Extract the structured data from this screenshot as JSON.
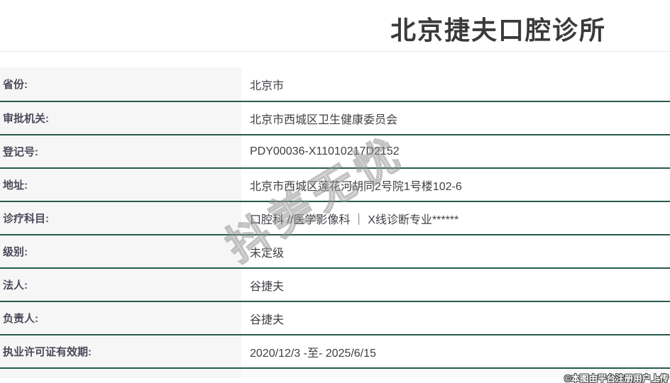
{
  "header": {
    "title": "北京捷夫口腔诊所"
  },
  "table": {
    "rows": [
      {
        "label": "省份:",
        "value": "北京市"
      },
      {
        "label": "审批机关:",
        "value": "北京市西城区卫生健康委员会"
      },
      {
        "label": "登记号:",
        "value": "PDY00036-X11010217D2152"
      },
      {
        "label": "地址:",
        "value": "北京市西城区莲花河胡同2号院1号楼102-6"
      },
      {
        "label": "诊疗科目:",
        "value": "口腔科 //医学影像科 ｜ X线诊断专业******"
      },
      {
        "label": "级别:",
        "value": "未定级"
      },
      {
        "label": "法人:",
        "value": "谷捷夫"
      },
      {
        "label": "负责人:",
        "value": "谷捷夫"
      },
      {
        "label": "执业许可证有效期:",
        "value": "2020/12/3 -至- 2025/6/15"
      }
    ]
  },
  "watermark": {
    "text": "抖美无忧"
  },
  "footer": {
    "copyright": "©本图由平台注册用户上传"
  },
  "colors": {
    "separator_green": "#265c4a",
    "label_bg": "#f6f6f6",
    "label_text": "#4a4a59",
    "value_text": "#3f3f45",
    "title_text": "#3a3a3a",
    "watermark_gray": "#919191"
  }
}
